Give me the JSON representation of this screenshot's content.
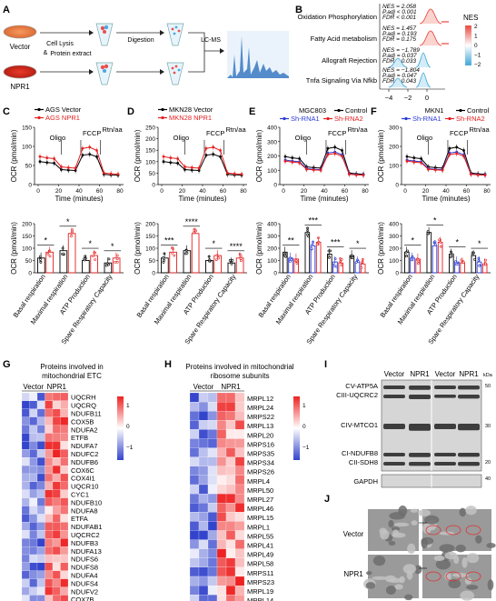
{
  "panel_letters": [
    "A",
    "B",
    "C",
    "D",
    "E",
    "F",
    "G",
    "H",
    "I",
    "J"
  ],
  "panel_a": {
    "dish_labels": [
      "Vector",
      "NPR1"
    ],
    "steps": [
      "Cell Lysis",
      "&",
      "Protein extract",
      "Digestion",
      "LC-MS"
    ]
  },
  "panel_b": {
    "legend_title": "NES",
    "legend_ticks": [
      "2",
      "1",
      "0",
      "−1",
      "−2"
    ],
    "x_ticks": [
      "−4",
      "−2",
      "0"
    ],
    "pathways": [
      {
        "name": "Oxidation Phosphorylation",
        "nes": "NES = 2.058",
        "padj": "P.adj < 0.001",
        "fdr": "FDR < 0.001",
        "color": "#e8453c"
      },
      {
        "name": "Fatty Acid metabolism",
        "nes": "NES = 1.457",
        "padj": "P.adj = 0.193",
        "fdr": "FDR = 0.175",
        "color": "#e8453c"
      },
      {
        "name": "Allograft Rejection",
        "nes": "NES = −1.789",
        "padj": "P.adj = 0.037",
        "fdr": "FDR = 0.033",
        "color": "#3aa6d8"
      },
      {
        "name": "Tnfa Signaling Via Nfkb",
        "nes": "NES = −1.804",
        "padj": "P.adj = 0.047",
        "fdr": "FDR = 0.043",
        "color": "#3aa6d8"
      }
    ]
  },
  "seahorse": {
    "y_label": "OCR (pmol/min)",
    "x_label": "Time (minutes)",
    "x_ticks": [
      "0",
      "20",
      "40",
      "60",
      "80"
    ],
    "injections": [
      "Oligo",
      "FCCP",
      "Rtn/aa"
    ],
    "panels": [
      {
        "letter": "C",
        "legend": [
          "AGS Vector",
          "AGS NPR1"
        ],
        "colors": [
          "#000000",
          "#e32020"
        ],
        "yticks": [
          "0",
          "50",
          "100",
          "150"
        ],
        "bar_yticks": [
          "0",
          "50",
          "100",
          "150",
          "200"
        ],
        "stars": [
          "*",
          "*",
          "*",
          "*"
        ]
      },
      {
        "letter": "D",
        "legend": [
          "MKN28 Vector",
          "MKN28 NPR1"
        ],
        "colors": [
          "#000000",
          "#e32020"
        ],
        "yticks": [
          "0",
          "50",
          "100",
          "150",
          "200",
          "250"
        ],
        "bar_yticks": [
          "0",
          "50",
          "100",
          "150",
          "200"
        ],
        "stars": [
          "***",
          "****",
          "*",
          "****"
        ]
      },
      {
        "letter": "E",
        "title": "MGC803",
        "legend": [
          "Control",
          "Sh-RNA1",
          "Sh-RNA2"
        ],
        "colors": [
          "#000000",
          "#2b3bd6",
          "#e32020"
        ],
        "yticks": [
          "0",
          "100",
          "200",
          "300",
          "400"
        ],
        "bar_yticks": [
          "0",
          "100",
          "200",
          "300",
          "400"
        ],
        "stars": [
          "**",
          "***",
          "***",
          "*"
        ]
      },
      {
        "letter": "F",
        "title": "MKN1",
        "legend": [
          "Control",
          "Sh-RNA1",
          "Sh-RNA2"
        ],
        "colors": [
          "#000000",
          "#2b3bd6",
          "#e32020"
        ],
        "yticks": [
          "0",
          "100",
          "200",
          "300"
        ],
        "bar_yticks": [
          "0",
          "100",
          "200",
          "300",
          "400"
        ],
        "stars": [
          "*",
          "*",
          "*",
          "*"
        ]
      }
    ],
    "categories_cd": [
      "Basal respiration",
      "Maximal respiration",
      "ATP Production",
      "Spare Respiratory Capacity"
    ],
    "categories_ef": [
      "Basal respiration",
      "Maximal respiration",
      "ATP Production",
      "Spare Respiratory Capacity"
    ]
  },
  "heatmap_g": {
    "title_line1": "Proteins involved in",
    "title_line2": "mitochondrial ETC",
    "groups": [
      "Vector",
      "NPR1"
    ],
    "legend_ticks": [
      "1",
      "0",
      "−1"
    ],
    "rows": [
      "UQCRH",
      "UQCRQ",
      "NDUFB11",
      "COX5B",
      "NDUFA2",
      "ETFB",
      "NDUFA7",
      "NDUFC2",
      "NDUFB6",
      "COX6C",
      "COX4I1",
      "UQCR10",
      "CYC1",
      "NDUFB10",
      "NDUFA8",
      "ETFA",
      "NDUFAB1",
      "UQCRC2",
      "NDUFB3",
      "NDUFA13",
      "NDUFS6",
      "NDUFS8",
      "NDUFA4",
      "NDUFS4",
      "NDUFV2",
      "COX7B"
    ]
  },
  "heatmap_h": {
    "title_line1": "Proteins involved in mitochondrial",
    "title_line2": "ribosome subunits",
    "groups": [
      "Vector",
      "NPR1"
    ],
    "legend_ticks": [
      "1",
      "0",
      "−1"
    ],
    "rows": [
      "MRPL12",
      "MRPL24",
      "MRPS22",
      "MRPL13",
      "MRPL20",
      "MRPS16",
      "MRPS35",
      "MRPS34",
      "MRPS26",
      "MRPL4",
      "MRPL50",
      "MRPL27",
      "MRPL46",
      "MRPL15",
      "MRPL1",
      "MRPL55",
      "MRPL41",
      "MRPL49",
      "MRPL58",
      "MRPS11",
      "MRPS23",
      "MRPL19",
      "MRPL14"
    ]
  },
  "western": {
    "lanes": [
      "Vector",
      "NPR1",
      "Vector",
      "NPR1"
    ],
    "kda": "kDa",
    "bands": [
      "CV-ATP5A",
      "CIII-UQCRC2",
      "CIV-MTCO1",
      "CI-NDUFB8",
      "CII-SDH8",
      "GAPDH"
    ],
    "markers": [
      "50",
      "30",
      "20",
      "40"
    ]
  },
  "em": {
    "rows": [
      "Vector",
      "NPR1"
    ]
  }
}
